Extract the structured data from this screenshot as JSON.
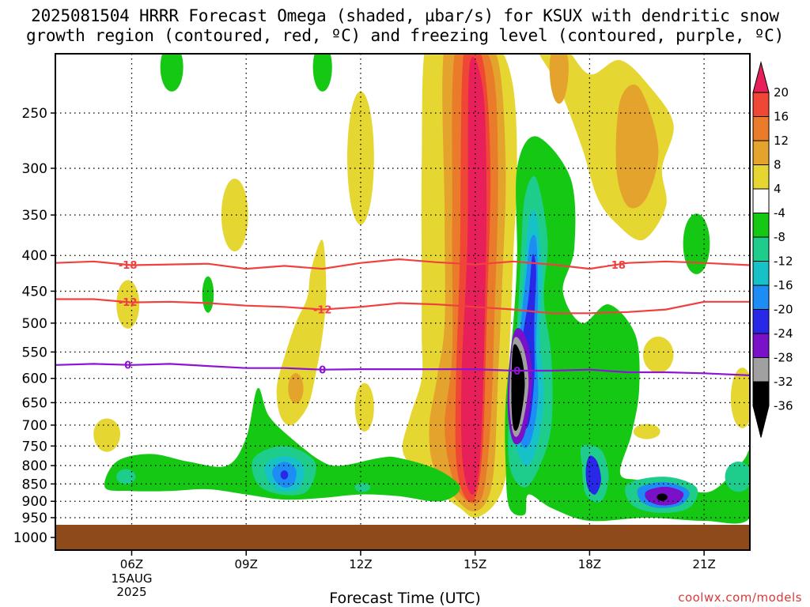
{
  "title_line1": "2025081504 HRRR Forecast Omega (shaded, µbar/s) for KSUX with dendritic snow",
  "title_line2": "growth region (contoured, red, ºC) and freezing level (contoured, purple, ºC)",
  "x_axis_title": "Forecast Time (UTC)",
  "credit": "coolwx.com/models",
  "chart_data": {
    "type": "heatmap",
    "title": "2025081504 HRRR Forecast Omega (shaded, µbar/s) for KSUX with dendritic snow growth region (contoured, red, ºC) and freezing level (contoured, purple, ºC)",
    "xlabel": "Forecast Time (UTC)",
    "ylabel": "",
    "x_range_hours_utc": [
      4,
      22.2
    ],
    "y_range_hPa": [
      200,
      1000
    ],
    "y_scale": "log-pressure (inverted)",
    "grid": true,
    "x_ticks": [
      {
        "hour": 6,
        "label": "06Z",
        "sub": [
          "15AUG",
          "2025"
        ]
      },
      {
        "hour": 9,
        "label": "09Z"
      },
      {
        "hour": 12,
        "label": "12Z"
      },
      {
        "hour": 15,
        "label": "15Z"
      },
      {
        "hour": 18,
        "label": "18Z"
      },
      {
        "hour": 21,
        "label": "21Z"
      }
    ],
    "y_ticks": [
      250,
      300,
      350,
      400,
      450,
      500,
      550,
      600,
      650,
      700,
      750,
      800,
      850,
      900,
      950,
      1000
    ],
    "colorbar": {
      "labels": [
        "20",
        "16",
        "12",
        "8",
        "4",
        "-4",
        "-8",
        "-12",
        "-16",
        "-20",
        "-24",
        "-28",
        "-32",
        "-36"
      ],
      "colors": [
        "#e8205a",
        "#f04636",
        "#ea7b2a",
        "#e4a32c",
        "#e6d632",
        "#ffffff",
        "#14c814",
        "#1ecd8c",
        "#16c2c8",
        "#1e8cf5",
        "#2828e6",
        "#7a10c8",
        "#a0a0a0",
        "#000000"
      ]
    },
    "contours": [
      {
        "label": "-18",
        "color": "#f04040",
        "points": [
          [
            4.0,
            410
          ],
          [
            5,
            408
          ],
          [
            6,
            413
          ],
          [
            7,
            412
          ],
          [
            8,
            411
          ],
          [
            9,
            418
          ],
          [
            10,
            414
          ],
          [
            11,
            418
          ],
          [
            12,
            410
          ],
          [
            13,
            405
          ],
          [
            14,
            409
          ],
          [
            15,
            412
          ],
          [
            16,
            408
          ],
          [
            17,
            412
          ],
          [
            18,
            418
          ],
          [
            19,
            410
          ],
          [
            20,
            408
          ],
          [
            21,
            410
          ],
          [
            22.2,
            413
          ]
        ]
      },
      {
        "label": "-12",
        "color": "#f04040",
        "points": [
          [
            4.0,
            462
          ],
          [
            5,
            462
          ],
          [
            6,
            467
          ],
          [
            7,
            466
          ],
          [
            8,
            468
          ],
          [
            9,
            472
          ],
          [
            10,
            474
          ],
          [
            11,
            478
          ],
          [
            12,
            474
          ],
          [
            13,
            468
          ],
          [
            14,
            470
          ],
          [
            15,
            474
          ],
          [
            16,
            478
          ],
          [
            17,
            484
          ],
          [
            18,
            484
          ],
          [
            19,
            482
          ],
          [
            20,
            478
          ],
          [
            21,
            466
          ],
          [
            22.2,
            466
          ]
        ]
      },
      {
        "label": "0",
        "color": "#8c14d2",
        "points": [
          [
            4.0,
            574
          ],
          [
            5,
            572
          ],
          [
            6,
            574
          ],
          [
            7,
            572
          ],
          [
            8,
            576
          ],
          [
            9,
            580
          ],
          [
            10,
            580
          ],
          [
            11,
            583
          ],
          [
            12,
            582
          ],
          [
            13,
            582
          ],
          [
            14,
            582
          ],
          [
            15,
            582
          ],
          [
            16,
            585
          ],
          [
            17,
            585
          ],
          [
            18,
            583
          ],
          [
            19,
            588
          ],
          [
            20,
            588
          ],
          [
            21,
            590
          ],
          [
            22.2,
            594
          ]
        ]
      }
    ],
    "omega_regions": [
      {
        "level": "4",
        "color": "#e6d632",
        "center": [
          15.0,
          500
        ],
        "extent": "200-940 hPa",
        "note": "broad positive band"
      },
      {
        "level": "20+",
        "color": "#e8205a",
        "center": [
          15.0,
          520
        ],
        "extent": "220-920 hPa",
        "note": "strongest positive omega"
      },
      {
        "level": "-36",
        "color": "#000000",
        "center": [
          16.0,
          600
        ],
        "extent": "540-720 hPa",
        "note": "strongest negative omega"
      },
      {
        "level": "-8",
        "color": "#14c814",
        "center": [
          9.5,
          830
        ],
        "extent": "630-910 hPa"
      },
      {
        "level": "-24",
        "color": "#2828e6",
        "center": [
          10.0,
          820
        ],
        "extent": "790-860 hPa"
      },
      {
        "level": "-36",
        "color": "#000000",
        "center": [
          19.9,
          890
        ],
        "extent": "880-900 hPa"
      },
      {
        "level": "8",
        "color": "#e4a32c",
        "center": [
          19.3,
          290
        ],
        "extent": "200-370 hPa"
      }
    ]
  }
}
